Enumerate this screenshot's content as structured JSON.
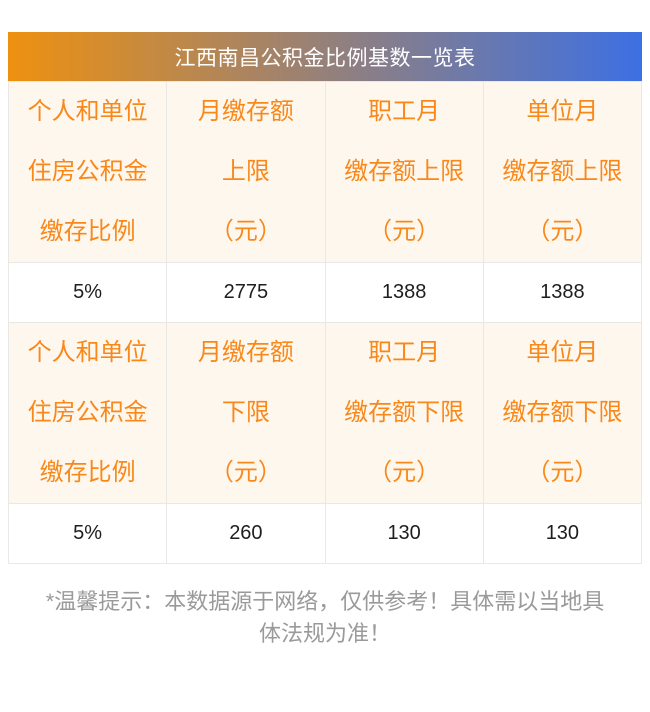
{
  "title": "江西南昌公积金比例基数一览表",
  "colors": {
    "gradient_start": "#EE9110",
    "gradient_end": "#3D70E3",
    "header_bg": "#FEF7EE",
    "header_text": "#F9881A",
    "value_text": "#1E1E1E",
    "border": "#EAE8E4",
    "note_text": "#9A9A9A"
  },
  "table": {
    "header_upper": [
      {
        "lines": [
          "个人和单位",
          "住房公积金",
          "缴存比例"
        ]
      },
      {
        "lines": [
          "月缴存额",
          "上限",
          "（元）"
        ]
      },
      {
        "lines": [
          "职工月",
          "缴存额上限",
          "（元）"
        ]
      },
      {
        "lines": [
          "单位月",
          "缴存额上限",
          "（元）"
        ]
      }
    ],
    "row_upper": [
      "5%",
      "2775",
      "1388",
      "1388"
    ],
    "header_lower": [
      {
        "lines": [
          "个人和单位",
          "住房公积金",
          "缴存比例"
        ]
      },
      {
        "lines": [
          "月缴存额",
          "下限",
          "（元）"
        ]
      },
      {
        "lines": [
          "职工月",
          "缴存额下限",
          "（元）"
        ]
      },
      {
        "lines": [
          "单位月",
          "缴存额下限",
          "（元）"
        ]
      }
    ],
    "row_lower": [
      "5%",
      "260",
      "130",
      "130"
    ]
  },
  "footer": {
    "line1": "*温馨提示：本数据源于网络，仅供参考！具体需以当地具",
    "line2": "体法规为准！"
  },
  "chart_data": [
    {
      "type": "table",
      "title": "江西南昌公积金比例基数一览表",
      "columns": [
        "个人和单位住房公积金缴存比例",
        "月缴存额上限（元）",
        "职工月缴存额上限（元）",
        "单位月缴存额上限（元）"
      ],
      "rows": [
        [
          "5%",
          "2775",
          "1388",
          "1388"
        ]
      ]
    },
    {
      "type": "table",
      "title": "江西南昌公积金比例基数一览表",
      "columns": [
        "个人和单位住房公积金缴存比例",
        "月缴存额下限（元）",
        "职工月缴存额下限（元）",
        "单位月缴存额下限（元）"
      ],
      "rows": [
        [
          "5%",
          "260",
          "130",
          "130"
        ]
      ]
    }
  ]
}
